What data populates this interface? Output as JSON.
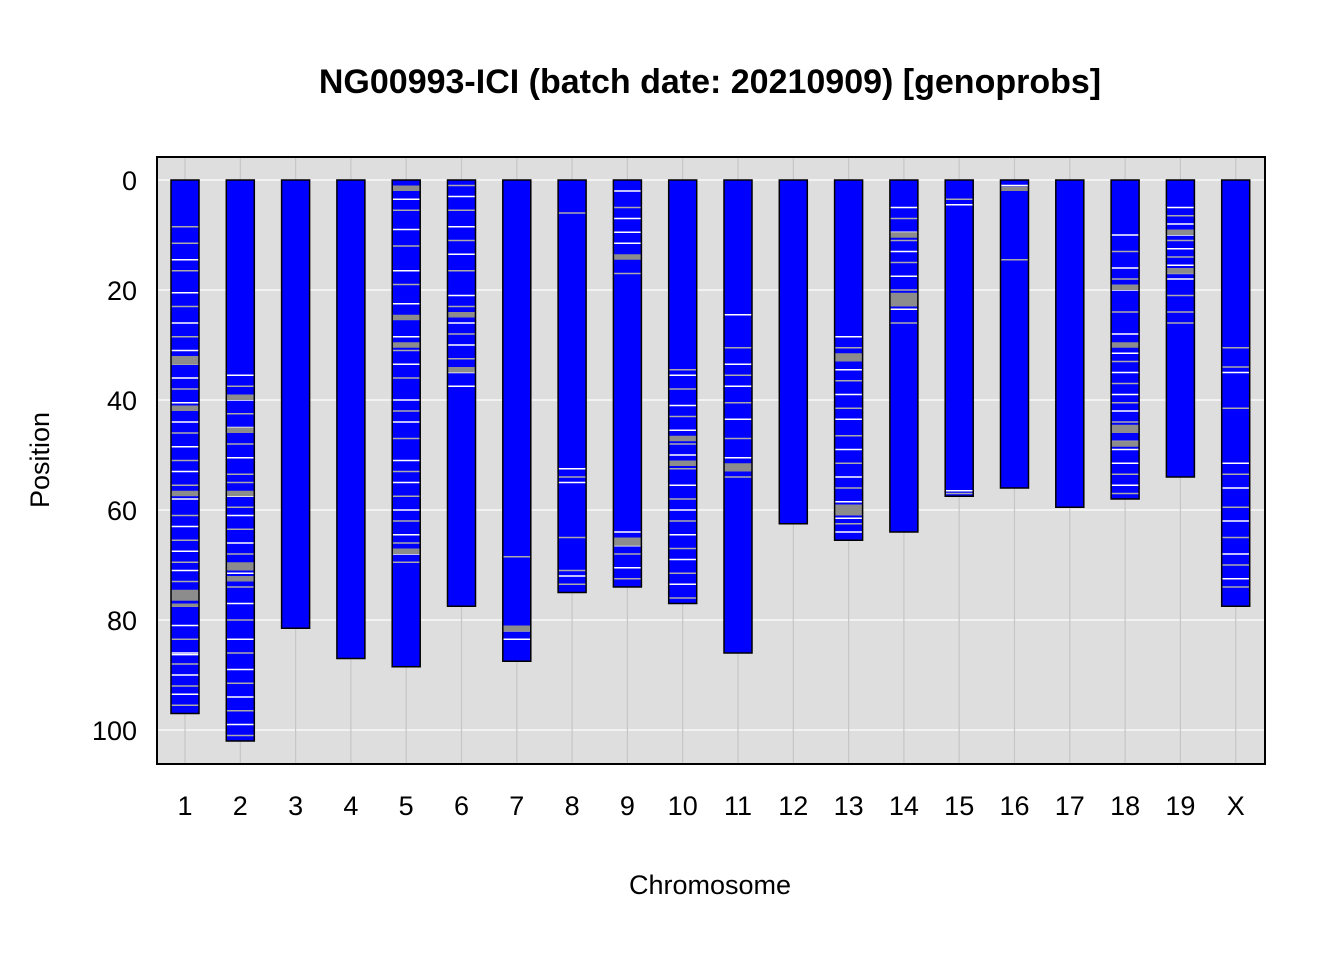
{
  "chart_data": {
    "type": "chromosome-ideogram",
    "title": "NG00993-ICI (batch date: 20210909) [genoprobs]",
    "xlabel": "Chromosome",
    "ylabel": "Position",
    "ylim": [
      0,
      105
    ],
    "y_reversed": true,
    "y_ticks": [
      0,
      20,
      40,
      60,
      80,
      100
    ],
    "grid": true,
    "colors": {
      "panel_background": "#dedede",
      "gridline": "#ffffff",
      "vertical_gridline": "#c6c6c6",
      "chromosome_fill": "#0000ff",
      "marker_minor": "#aaaaaa",
      "marker_major": "#ffffff",
      "marker_dense": "#8c8c8c"
    },
    "chromosomes": [
      {
        "name": "1",
        "length": 97,
        "white": [
          14.5,
          20.5,
          26,
          31,
          36,
          40.5,
          44,
          48.5,
          53,
          58,
          63,
          67.5,
          71,
          81,
          86,
          86.3,
          90,
          93.5
        ],
        "gray": [
          8.5,
          11.5,
          16.5,
          23,
          28.5,
          33.5,
          38,
          46,
          51,
          55.5,
          61,
          65.5,
          69.5,
          73,
          77.5,
          83.5,
          88,
          92,
          95.5
        ],
        "dark": [
          [
            32,
            33.5
          ],
          [
            41,
            42
          ],
          [
            56.5,
            57.5
          ],
          [
            74.5,
            76.5
          ],
          [
            77,
            77.6
          ]
        ]
      },
      {
        "name": "2",
        "length": 102,
        "white": [
          35.5,
          40,
          45,
          50.5,
          57.5,
          61,
          66,
          71.5,
          77,
          83.5,
          89,
          94,
          99
        ],
        "gray": [
          37.5,
          42.5,
          48,
          53.5,
          55,
          59.5,
          63.5,
          68,
          74,
          80,
          86,
          91.5,
          96.5,
          101
        ],
        "dark": [
          [
            39,
            40
          ],
          [
            45,
            46
          ],
          [
            56.5,
            57.5
          ],
          [
            69.5,
            71
          ],
          [
            72,
            73
          ]
        ]
      },
      {
        "name": "3",
        "length": 81.5,
        "white": [],
        "gray": [],
        "dark": []
      },
      {
        "name": "4",
        "length": 87,
        "white": [],
        "gray": [],
        "dark": []
      },
      {
        "name": "5",
        "length": 88.5,
        "white": [
          3.5,
          9,
          16.5,
          22.5,
          28.5,
          33.5,
          40,
          44,
          51,
          55,
          60,
          64.5,
          68
        ],
        "gray": [
          5.5,
          12,
          19,
          25,
          31,
          36,
          42,
          47,
          53,
          57.5,
          62,
          66,
          69.5
        ],
        "dark": [
          [
            1,
            2
          ],
          [
            24.5,
            25.5
          ],
          [
            29.5,
            30.5
          ],
          [
            67,
            68
          ]
        ]
      },
      {
        "name": "6",
        "length": 77.5,
        "white": [
          3,
          8.5,
          13.5,
          21,
          26,
          30,
          35,
          37.5
        ],
        "gray": [
          1,
          5.5,
          11,
          16.5,
          23,
          28,
          32.5
        ],
        "dark": [
          [
            24,
            25
          ],
          [
            34,
            35
          ]
        ]
      },
      {
        "name": "7",
        "length": 87.5,
        "white": [
          83.5
        ],
        "gray": [
          68.5,
          82
        ],
        "dark": [
          [
            81,
            82
          ]
        ]
      },
      {
        "name": "8",
        "length": 75,
        "white": [
          52.5,
          55,
          72
        ],
        "gray": [
          6,
          54,
          65,
          71,
          73.5
        ],
        "dark": []
      },
      {
        "name": "9",
        "length": 74,
        "white": [
          2,
          7,
          9.5,
          11.5,
          64,
          66.5,
          70.5
        ],
        "gray": [
          5,
          17,
          68,
          72.5
        ],
        "dark": [
          [
            13.5,
            14.5
          ],
          [
            65,
            66.5
          ]
        ]
      },
      {
        "name": "10",
        "length": 77,
        "white": [
          35.5,
          41,
          45.5,
          50,
          55.5,
          60,
          64.5,
          69,
          73.5
        ],
        "gray": [
          34.5,
          38,
          43,
          48,
          52.5,
          58,
          62,
          67,
          71.5,
          76
        ],
        "dark": [
          [
            46.5,
            47.5
          ],
          [
            51,
            52
          ]
        ]
      },
      {
        "name": "11",
        "length": 86,
        "white": [
          24.5,
          33.5,
          37.5,
          43.5,
          50.5
        ],
        "gray": [
          30.5,
          35.5,
          40.5,
          47,
          54
        ],
        "dark": [
          [
            51.5,
            53
          ]
        ]
      },
      {
        "name": "12",
        "length": 62.5,
        "white": [],
        "gray": [],
        "dark": []
      },
      {
        "name": "13",
        "length": 65.5,
        "white": [
          28.5,
          32,
          34.5,
          39,
          43.5,
          49,
          54,
          58.5,
          61.5,
          64
        ],
        "gray": [
          30.5,
          36.5,
          41.5,
          46.5,
          51.5,
          56,
          62.5
        ],
        "dark": [
          [
            31.5,
            33
          ],
          [
            59,
            61
          ]
        ]
      },
      {
        "name": "14",
        "length": 64,
        "white": [
          5,
          9.5,
          13,
          17.5,
          23.5
        ],
        "gray": [
          7,
          11,
          15,
          20,
          26
        ],
        "dark": [
          [
            9.5,
            10.5
          ],
          [
            20.5,
            23
          ]
        ]
      },
      {
        "name": "15",
        "length": 57.5,
        "white": [
          4.5,
          56.5
        ],
        "gray": [
          3.5,
          57
        ],
        "dark": []
      },
      {
        "name": "16",
        "length": 56,
        "white": [
          1
        ],
        "gray": [
          14.5
        ],
        "dark": [
          [
            1.2,
            2
          ]
        ]
      },
      {
        "name": "17",
        "length": 59.5,
        "white": [],
        "gray": [],
        "dark": []
      },
      {
        "name": "18",
        "length": 58,
        "white": [
          10,
          16,
          20,
          28,
          31.5,
          35,
          39,
          42,
          45.5,
          49,
          51.5,
          55.5
        ],
        "gray": [
          13,
          18,
          24,
          30,
          33,
          37,
          40.5,
          44,
          47.5,
          53.5,
          57
        ],
        "dark": [
          [
            19,
            20
          ],
          [
            29.5,
            30.5
          ],
          [
            44.5,
            46
          ],
          [
            47.5,
            48.5
          ]
        ]
      },
      {
        "name": "19",
        "length": 54,
        "white": [
          5,
          8,
          10,
          12.5,
          15.5,
          18
        ],
        "gray": [
          6.5,
          11,
          14,
          17,
          21,
          24,
          26
        ],
        "dark": [
          [
            9,
            10
          ],
          [
            16,
            17
          ]
        ]
      },
      {
        "name": "X",
        "length": 77.5,
        "white": [
          35,
          51.5,
          56,
          62,
          68,
          72.5
        ],
        "gray": [
          30.5,
          34,
          41.5,
          53.5,
          59.5,
          65,
          70,
          74
        ],
        "dark": []
      }
    ]
  }
}
